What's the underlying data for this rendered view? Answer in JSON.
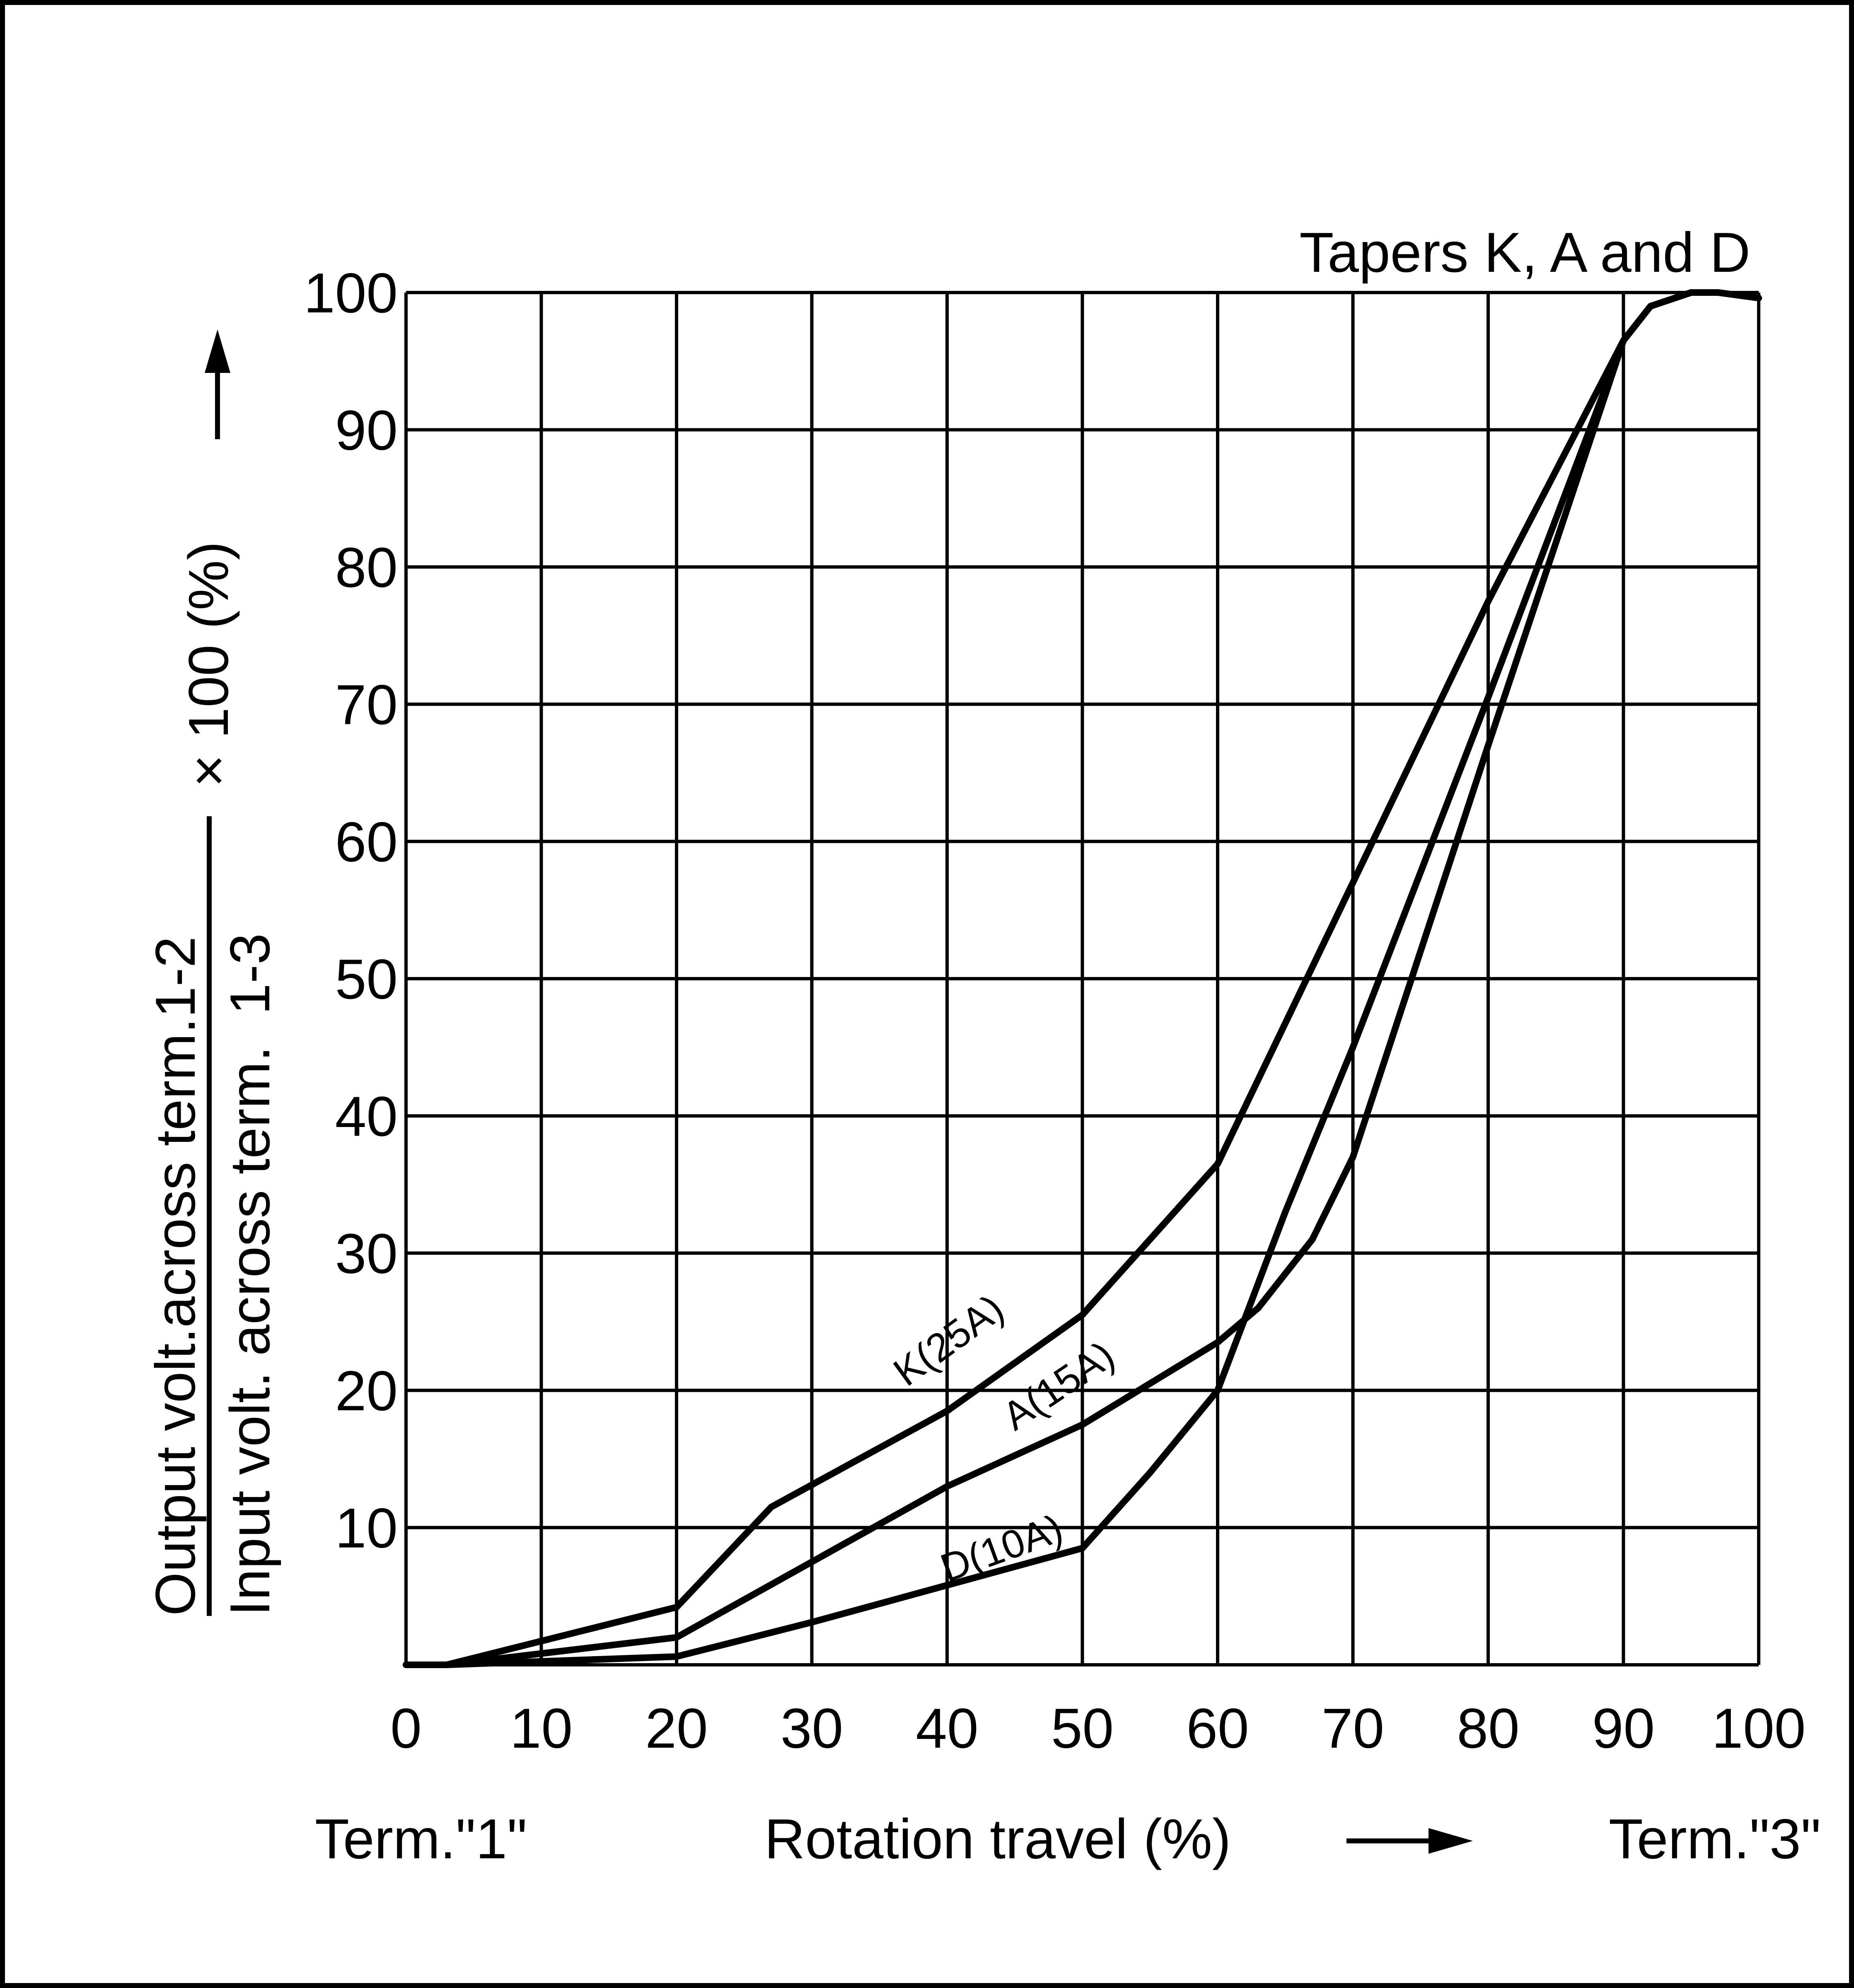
{
  "chart_data": {
    "type": "line",
    "title": "Tapers K, A and D",
    "xlabel": "Rotation travel (%)",
    "x_start_label": "Term.\"1\"",
    "x_end_label": "Term.\"3\"",
    "ylabel_numerator": "Output volt.across term.1-2",
    "ylabel_denominator": "Input volt. across term.  1-3",
    "ylabel_suffix": "× 100 (%)",
    "xlim": [
      0,
      100
    ],
    "ylim": [
      0,
      100
    ],
    "grid": true,
    "x_ticks": [
      "0",
      "10",
      "20",
      "30",
      "40",
      "50",
      "60",
      "70",
      "80",
      "90",
      "100"
    ],
    "y_ticks": [
      "10",
      "20",
      "30",
      "40",
      "50",
      "60",
      "70",
      "80",
      "90",
      "100"
    ],
    "series": [
      {
        "name": "K(25A)",
        "x": [
          0,
          3,
          20,
          27,
          40,
          50,
          60,
          70,
          80,
          90,
          92,
          95,
          97,
          100
        ],
        "y": [
          0,
          0,
          4.2,
          11.5,
          18.5,
          25.5,
          36.5,
          57,
          77.5,
          96.5,
          99,
          100,
          100,
          99.6
        ]
      },
      {
        "name": "A(15A)",
        "x": [
          0,
          3,
          20,
          30,
          40,
          50,
          60,
          63,
          67,
          70,
          75,
          80,
          90,
          92,
          95,
          97,
          100
        ],
        "y": [
          0,
          0,
          2,
          7.5,
          13,
          17.5,
          23.5,
          26,
          31,
          37,
          52,
          67,
          96.5,
          99,
          100,
          100,
          99.6
        ]
      },
      {
        "name": "D(10A)",
        "x": [
          0,
          3,
          20,
          30,
          40,
          50,
          55,
          60,
          65,
          70,
          80,
          90,
          92,
          95,
          97,
          100
        ],
        "y": [
          0,
          0,
          0.6,
          3.1,
          5.8,
          8.5,
          14,
          20,
          33,
          45,
          70.5,
          96.5,
          99,
          100,
          100,
          99.6
        ]
      }
    ]
  }
}
